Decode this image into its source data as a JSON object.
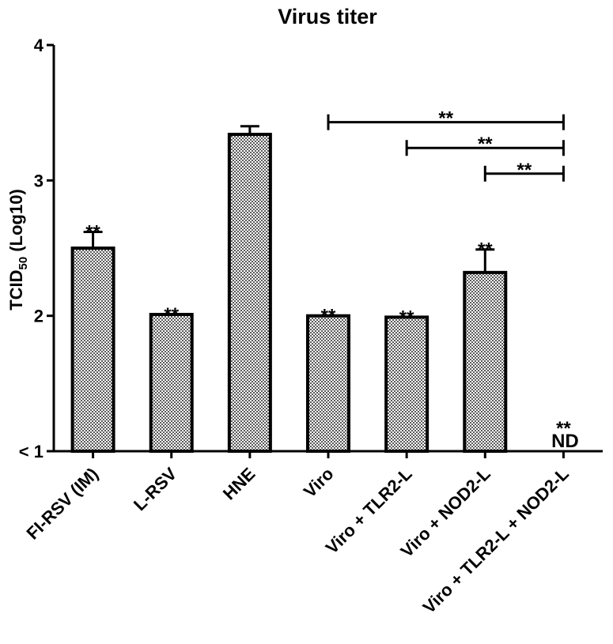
{
  "chart_data": {
    "type": "bar",
    "title": "Virus titer",
    "ylabel_main": "TCID",
    "ylabel_sub": "50",
    "ylabel_suffix": " (Log10)",
    "ylim": [
      1,
      4
    ],
    "yticks": [
      {
        "value": 1,
        "label": "< 1"
      },
      {
        "value": 2,
        "label": "2"
      },
      {
        "value": 3,
        "label": "3"
      },
      {
        "value": 4,
        "label": "4"
      }
    ],
    "categories": [
      "FI-RSV (IM)",
      "L-RSV",
      "HNE",
      "Viro",
      "Viro + TLR2-L",
      "Viro + NOD2-L",
      "Viro + TLR2-L + NOD2-L"
    ],
    "values": [
      2.5,
      2.01,
      3.34,
      2.0,
      1.99,
      2.32,
      1.0
    ],
    "errors": [
      0.12,
      0.0,
      0.06,
      0.0,
      0.0,
      0.17,
      0.0
    ],
    "bar_labels": [
      "**",
      "**",
      "",
      "**",
      "**",
      "**",
      "**"
    ],
    "nd_labels": [
      "",
      "",
      "",
      "",
      "",
      "",
      "ND"
    ],
    "significance": [
      {
        "from": 3,
        "to": 6,
        "y": 3.43,
        "label": "**"
      },
      {
        "from": 4,
        "to": 6,
        "y": 3.24,
        "label": "**"
      },
      {
        "from": 5,
        "to": 6,
        "y": 3.05,
        "label": "**"
      }
    ],
    "grid": false,
    "colors": {
      "bar_fill": "#7a7a7a",
      "bar_stroke": "#000000"
    }
  }
}
